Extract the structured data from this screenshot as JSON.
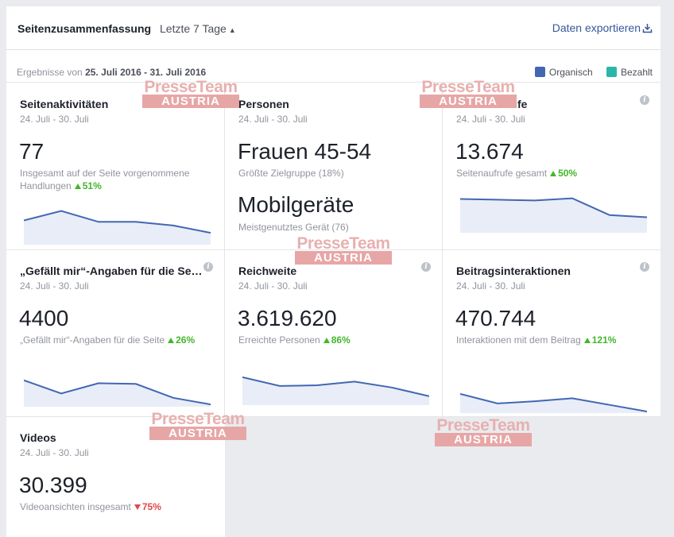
{
  "header": {
    "title": "Seitenzusammenfassung",
    "range_label": "Letzte 7 Tage",
    "export_label": "Daten exportieren"
  },
  "subheader": {
    "results_prefix": "Ergebnisse von",
    "results_range": "25. Juli 2016 - 31. Juli 2016",
    "legend": [
      {
        "label": "Organisch",
        "color": "#4267b2"
      },
      {
        "label": "Bezahlt",
        "color": "#2ab7a9"
      }
    ]
  },
  "watermark": {
    "line1": "PresseTeam",
    "line2": "AUSTRIA"
  },
  "cards": {
    "seitenaktivitaeten": {
      "title": "Seitenaktivitäten",
      "date": "24. Juli - 30. Juli",
      "value": "77",
      "desc": "Insgesamt auf der Seite vorgenommene Handlungen",
      "change": "51%",
      "trend": "up",
      "spark": [
        0.62,
        0.88,
        0.58,
        0.58,
        0.48,
        0.28
      ]
    },
    "personen": {
      "title": "Personen",
      "date": "24. Juli - 30. Juli",
      "value": "Frauen 45-54",
      "desc": "Größte Zielgruppe (18%)",
      "value2": "Mobilgeräte",
      "desc2": "Meistgenutztes Gerät (76)"
    },
    "seitenaufrufe": {
      "title": "Seitenaufrufe",
      "date": "24. Juli - 30. Juli",
      "value": "13.674",
      "desc": "Seitenaufrufe gesamt",
      "change": "50%",
      "trend": "up",
      "spark": [
        0.88,
        0.86,
        0.84,
        0.9,
        0.44,
        0.38
      ]
    },
    "gefaellt": {
      "title": "„Gefällt mir“-Angaben für die Seite",
      "date": "24. Juli - 30. Juli",
      "value": "4400",
      "desc": "„Gefällt mir“-Angaben für die Seite",
      "change": "26%",
      "trend": "up",
      "spark": [
        0.68,
        0.32,
        0.6,
        0.58,
        0.2,
        0.02
      ]
    },
    "reichweite": {
      "title": "Reichweite",
      "date": "24. Juli - 30. Juli",
      "value": "3.619.620",
      "desc": "Erreichte Personen",
      "change": "86%",
      "trend": "up",
      "spark": [
        0.72,
        0.48,
        0.5,
        0.6,
        0.44,
        0.2
      ]
    },
    "beitragsinteraktionen": {
      "title": "Beitragsinteraktionen",
      "date": "24. Juli - 30. Juli",
      "value": "470.744",
      "desc": "Interaktionen mit dem Beitrag",
      "change": "121%",
      "trend": "up",
      "spark": [
        0.48,
        0.22,
        0.28,
        0.36,
        0.18,
        0.0
      ]
    },
    "videos": {
      "title": "Videos",
      "date": "24. Juli - 30. Juli",
      "value": "30.399",
      "desc": "Videoansichten insgesamt",
      "change": "75%",
      "trend": "down"
    }
  }
}
